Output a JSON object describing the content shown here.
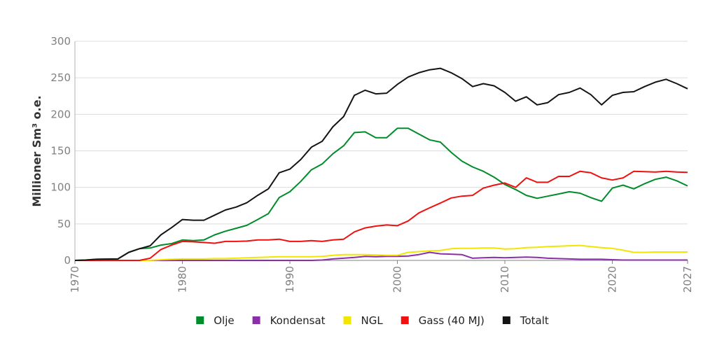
{
  "chart_data": {
    "type": "line",
    "ylabel": "Millioner Sm³ o.e.",
    "xlabel": "",
    "xlim": [
      1970,
      2027
    ],
    "ylim": [
      0,
      300
    ],
    "x_ticks": [
      "1970",
      "1980",
      "1990",
      "2000",
      "2010",
      "2020",
      "2027"
    ],
    "y_ticks": [
      "0",
      "50",
      "100",
      "150",
      "200",
      "250",
      "300"
    ],
    "grid": "horizontal",
    "legend_position": "bottom",
    "x": [
      1970,
      1971,
      1972,
      1973,
      1974,
      1975,
      1976,
      1977,
      1978,
      1979,
      1980,
      1981,
      1982,
      1983,
      1984,
      1985,
      1986,
      1987,
      1988,
      1989,
      1990,
      1991,
      1992,
      1993,
      1994,
      1995,
      1996,
      1997,
      1998,
      1999,
      2000,
      2001,
      2002,
      2003,
      2004,
      2005,
      2006,
      2007,
      2008,
      2009,
      2010,
      2011,
      2012,
      2013,
      2014,
      2015,
      2016,
      2017,
      2018,
      2019,
      2020,
      2021,
      2022,
      2023,
      2024,
      2025,
      2026,
      2027
    ],
    "series": [
      {
        "name": "Olje",
        "color": "#008c2a",
        "values": [
          0,
          0.5,
          1.5,
          1.8,
          2,
          11,
          16,
          17,
          21,
          23,
          28,
          27,
          28,
          35,
          40,
          44,
          48,
          56,
          64,
          86,
          94,
          108,
          124,
          132,
          146,
          157,
          175,
          176,
          168,
          168,
          181,
          181,
          173,
          165,
          162,
          148,
          136,
          128,
          122,
          114,
          104,
          97,
          89,
          85,
          88,
          91,
          94,
          92,
          86,
          81,
          99,
          103,
          98,
          105,
          111,
          114,
          109,
          102
        ]
      },
      {
        "name": "Kondensat",
        "color": "#8b2fa8",
        "values": [
          0,
          0,
          0,
          0,
          0,
          0,
          0,
          0,
          0,
          0,
          0,
          0,
          0,
          0,
          0,
          0,
          0,
          0,
          0,
          0,
          0,
          0,
          0,
          0.5,
          2,
          3,
          4,
          5.5,
          5,
          5.5,
          5.5,
          6,
          8,
          11,
          9,
          8.5,
          8,
          3,
          3.5,
          4,
          3.5,
          4,
          4.5,
          4,
          3,
          2.5,
          2,
          1.5,
          1.5,
          1.5,
          1,
          0.5,
          0.5,
          0.5,
          0.5,
          0.5,
          0.5,
          0.5
        ]
      },
      {
        "name": "NGL",
        "color": "#f2e600",
        "values": [
          0,
          0,
          0,
          0,
          0,
          0,
          0,
          0,
          1,
          1.5,
          2,
          2,
          2,
          2.5,
          2.5,
          3,
          3.5,
          4,
          4.5,
          5,
          5,
          5,
          5,
          5.5,
          7,
          8,
          8,
          8,
          7.5,
          7,
          7,
          11,
          12,
          13,
          13.5,
          16,
          16.5,
          16.5,
          17,
          17,
          15.5,
          16,
          17.5,
          18,
          19,
          19.5,
          20,
          20.5,
          19,
          17.5,
          16.5,
          14,
          11,
          11,
          11.5,
          11.5,
          11.5,
          11.5
        ]
      },
      {
        "name": "Gass (40 MJ)",
        "color": "#f01010",
        "values": [
          0,
          0,
          0,
          0,
          0,
          0,
          0,
          3,
          15,
          21,
          26,
          25.5,
          24.5,
          23.5,
          26,
          26,
          26.5,
          28,
          28,
          29,
          26,
          26,
          27,
          26,
          28,
          29,
          39,
          44.5,
          47,
          48.5,
          47.5,
          54,
          65,
          72,
          78.5,
          85.5,
          88,
          89,
          99,
          103,
          106,
          100,
          113,
          107,
          107,
          115,
          115,
          122,
          120,
          113,
          110,
          113,
          122,
          121.5,
          121,
          122,
          121,
          120.5
        ]
      },
      {
        "name": "Totalt",
        "color": "#141414",
        "values": [
          0,
          0.5,
          1.5,
          1.8,
          2,
          11,
          16,
          20,
          35,
          45,
          56,
          55,
          55,
          62,
          69,
          73,
          79,
          89,
          98,
          120,
          125,
          138,
          155,
          163,
          183,
          197,
          226,
          233,
          228,
          229,
          241,
          251,
          257,
          261,
          263,
          257,
          249,
          238,
          242,
          239,
          230,
          218,
          224,
          213,
          216,
          227,
          230,
          236,
          227,
          213,
          226,
          230,
          231,
          238,
          244,
          248,
          242,
          235
        ]
      }
    ]
  }
}
